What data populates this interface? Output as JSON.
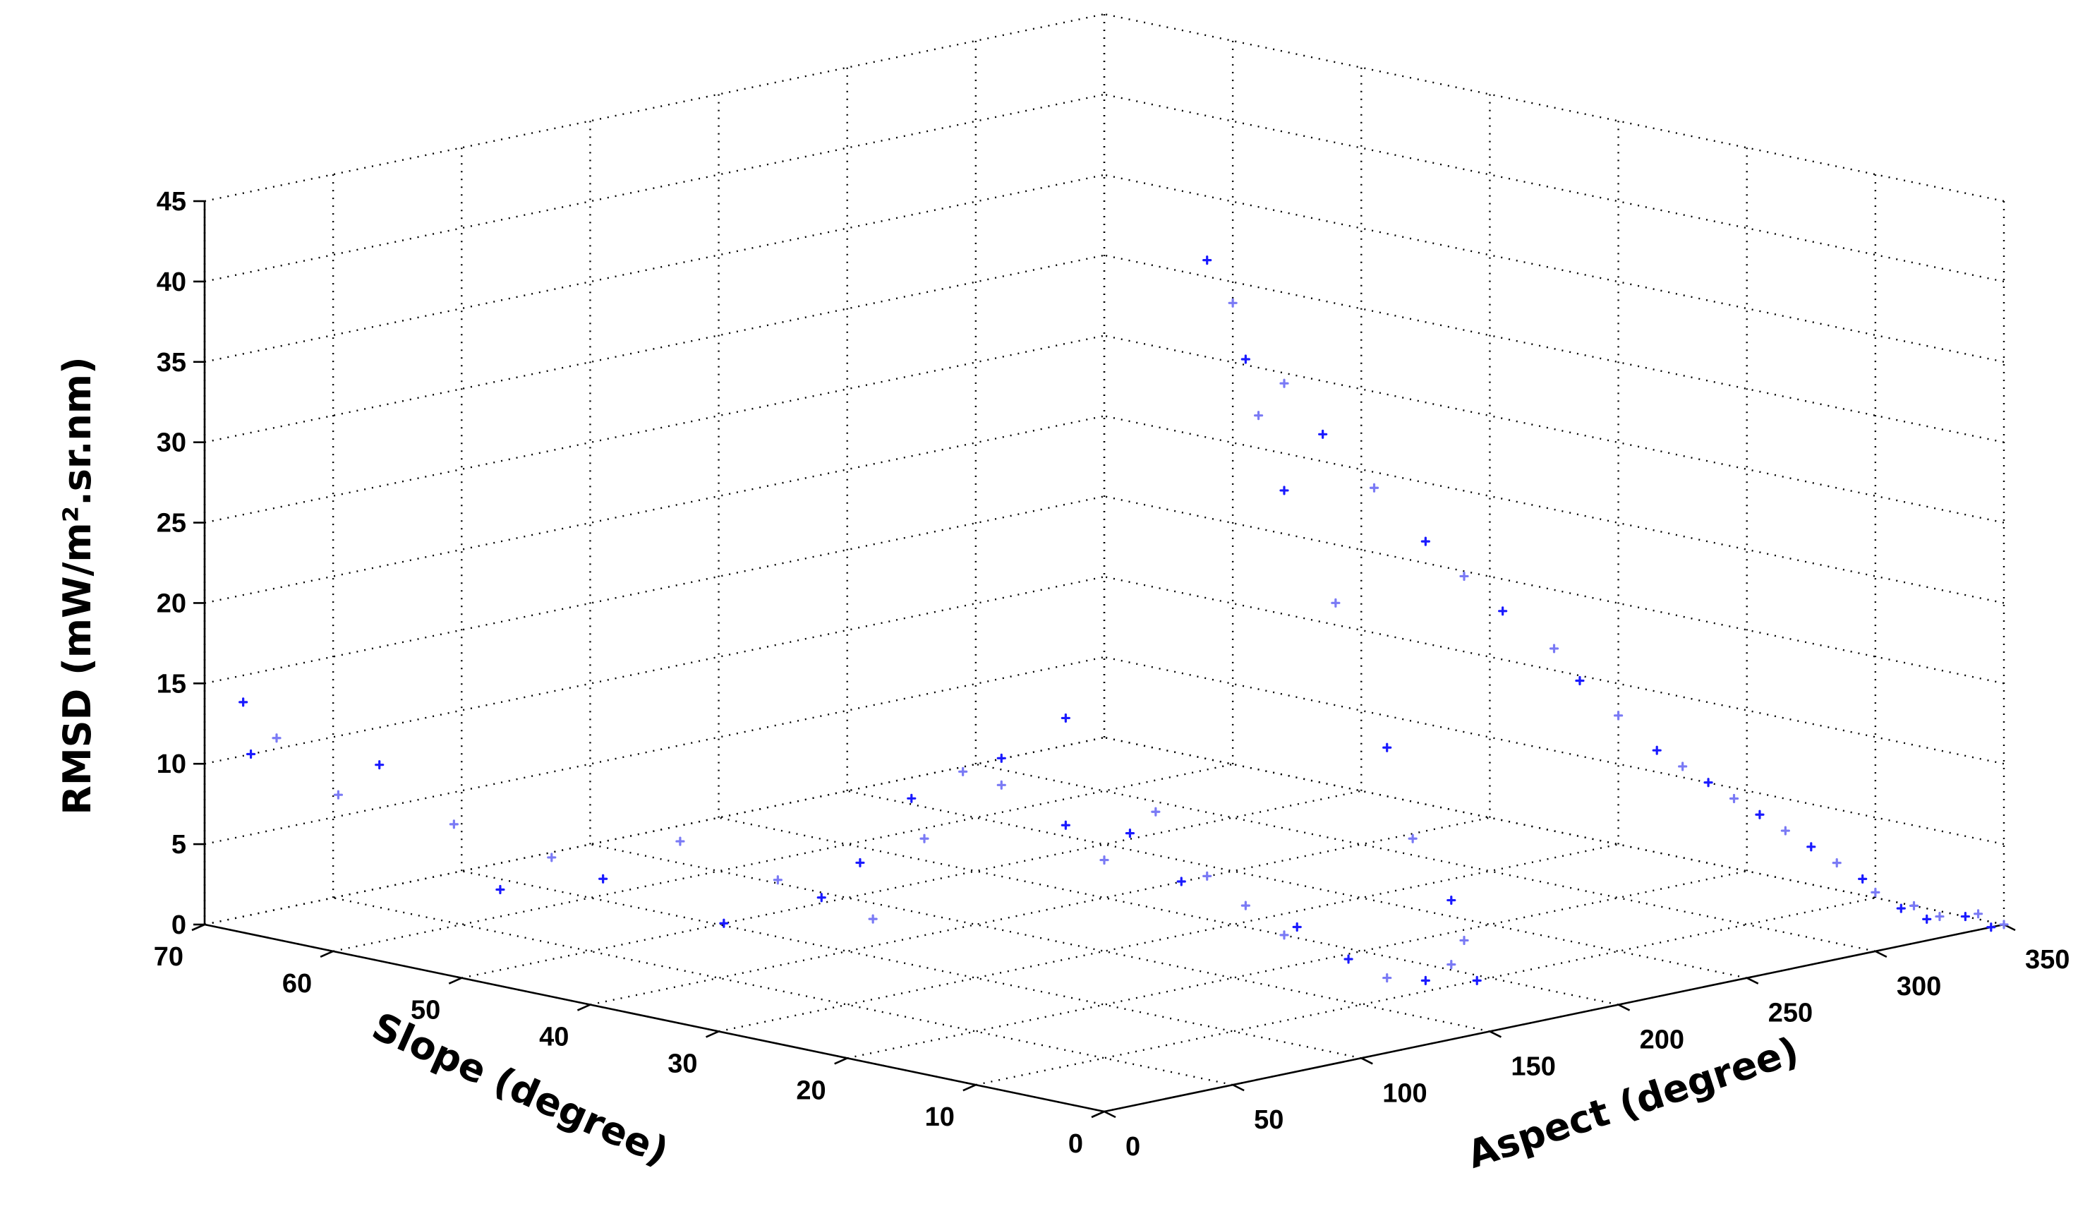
{
  "chart_data": {
    "type": "scatter",
    "projection": "3d",
    "title": "",
    "xlabel": "Aspect (degree)",
    "ylabel": "Slope (degree)",
    "zlabel": "RMSD (mW/m².sr.nm)",
    "xlim": [
      0,
      350
    ],
    "ylim": [
      0,
      70
    ],
    "zlim": [
      0,
      45
    ],
    "xticks": [
      "0",
      "50",
      "100",
      "150",
      "200",
      "250",
      "300",
      "350"
    ],
    "yticks": [
      "0",
      "10",
      "20",
      "30",
      "40",
      "50",
      "60",
      "70"
    ],
    "zticks": [
      "0",
      "5",
      "10",
      "15",
      "20",
      "25",
      "30",
      "35",
      "40",
      "45"
    ],
    "grid": true,
    "marker": "+",
    "colors": {
      "point": "#1a1aff",
      "point_light": "#7a7af5",
      "axis": "#000000"
    },
    "series": [
      {
        "points": [
          [
            5,
            68,
            14
          ],
          [
            8,
            66,
            12
          ],
          [
            3,
            67,
            11
          ],
          [
            12,
            62,
            9
          ],
          [
            18,
            60,
            11
          ],
          [
            22,
            55,
            8
          ],
          [
            15,
            50,
            5
          ],
          [
            25,
            48,
            7
          ],
          [
            30,
            45,
            6
          ],
          [
            35,
            40,
            9
          ],
          [
            42,
            38,
            4
          ],
          [
            48,
            35,
            7
          ],
          [
            55,
            33,
            6
          ],
          [
            60,
            30,
            5
          ],
          [
            65,
            32,
            8
          ],
          [
            70,
            28,
            10
          ],
          [
            75,
            30,
            12
          ],
          [
            80,
            27,
            14
          ],
          [
            85,
            25,
            15
          ],
          [
            90,
            26,
            13
          ],
          [
            95,
            22,
            11
          ],
          [
            100,
            20,
            9
          ],
          [
            105,
            24,
            17
          ],
          [
            110,
            18,
            12
          ],
          [
            115,
            21,
            10
          ],
          [
            120,
            16,
            8
          ],
          [
            125,
            19,
            7
          ],
          [
            130,
            15,
            6
          ],
          [
            135,
            12,
            5
          ],
          [
            140,
            14,
            4
          ],
          [
            145,
            10,
            3
          ],
          [
            150,
            8,
            2
          ],
          [
            155,
            6,
            2
          ],
          [
            160,
            5,
            3
          ],
          [
            165,
            4,
            2
          ],
          [
            170,
            6,
            4
          ],
          [
            175,
            8,
            6
          ],
          [
            180,
            12,
            9
          ],
          [
            185,
            15,
            14
          ],
          [
            190,
            20,
            22
          ],
          [
            195,
            25,
            28
          ],
          [
            200,
            28,
            32
          ],
          [
            205,
            30,
            35
          ],
          [
            210,
            32,
            38
          ],
          [
            215,
            35,
            40
          ],
          [
            220,
            30,
            33
          ],
          [
            225,
            28,
            30
          ],
          [
            230,
            25,
            27
          ],
          [
            235,
            22,
            24
          ],
          [
            240,
            20,
            22
          ],
          [
            245,
            18,
            20
          ],
          [
            250,
            15,
            18
          ],
          [
            255,
            14,
            16
          ],
          [
            260,
            12,
            14
          ],
          [
            265,
            10,
            12
          ],
          [
            270,
            9,
            11
          ],
          [
            275,
            8,
            10
          ],
          [
            280,
            7,
            9
          ],
          [
            285,
            6,
            8
          ],
          [
            290,
            5,
            7
          ],
          [
            295,
            4,
            6
          ],
          [
            300,
            3,
            5
          ],
          [
            305,
            2,
            4
          ],
          [
            310,
            2,
            3
          ],
          [
            315,
            1,
            2
          ],
          [
            320,
            1,
            2
          ],
          [
            325,
            1,
            1
          ],
          [
            330,
            1,
            1
          ],
          [
            335,
            0,
            1
          ],
          [
            340,
            0,
            1
          ],
          [
            345,
            0,
            0
          ],
          [
            350,
            0,
            0
          ]
        ]
      }
    ]
  }
}
